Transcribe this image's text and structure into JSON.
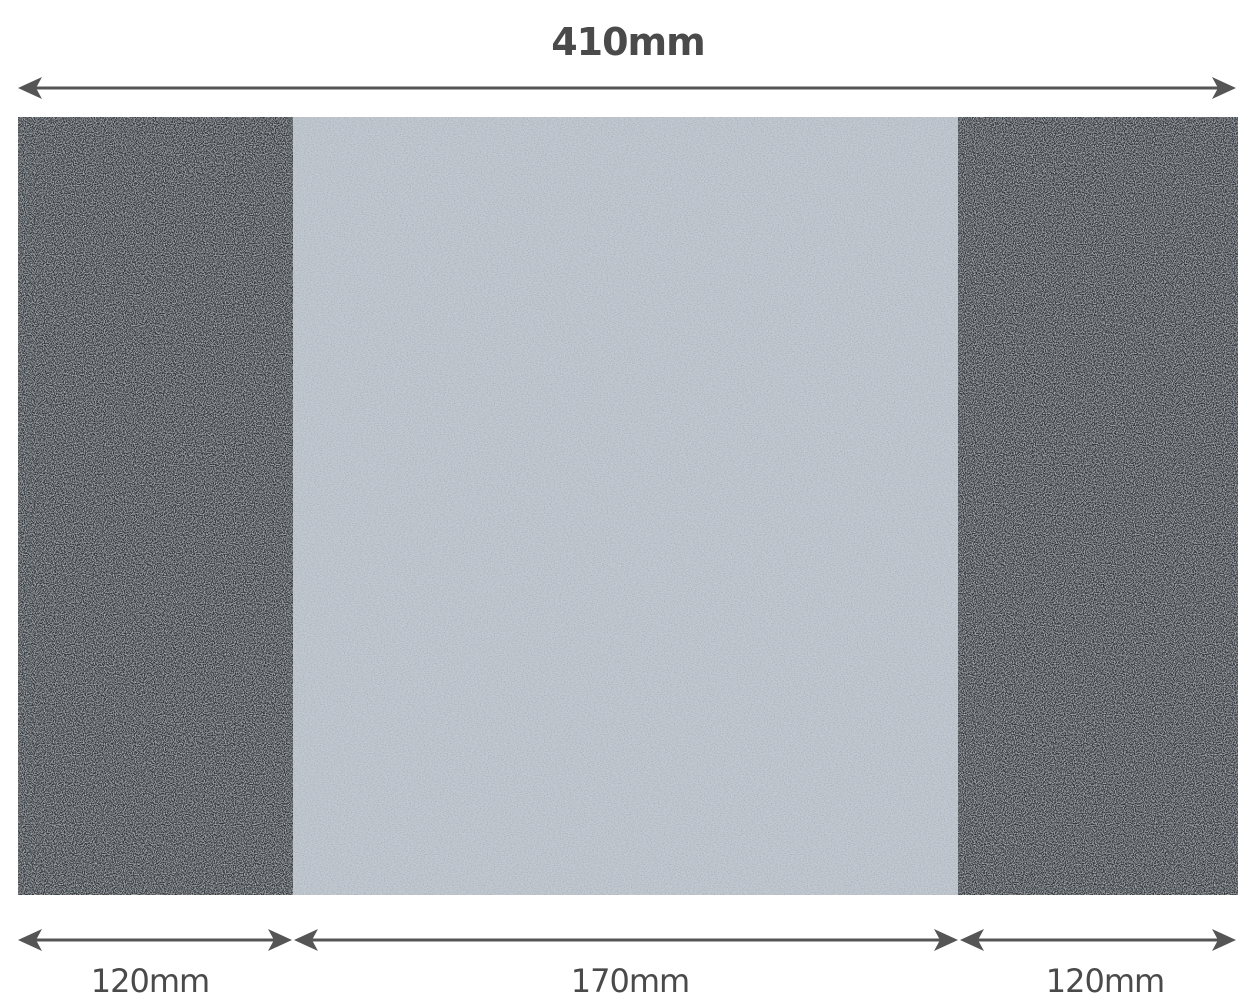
{
  "dimensions": {
    "total": "410mm",
    "left": "120mm",
    "middle": "170mm",
    "right": "120mm"
  },
  "colors": {
    "dark_stripe": "#2e3438",
    "light_stripe": "#b9c0c8",
    "arrow": "#555555",
    "text": "#4a4a4a"
  }
}
